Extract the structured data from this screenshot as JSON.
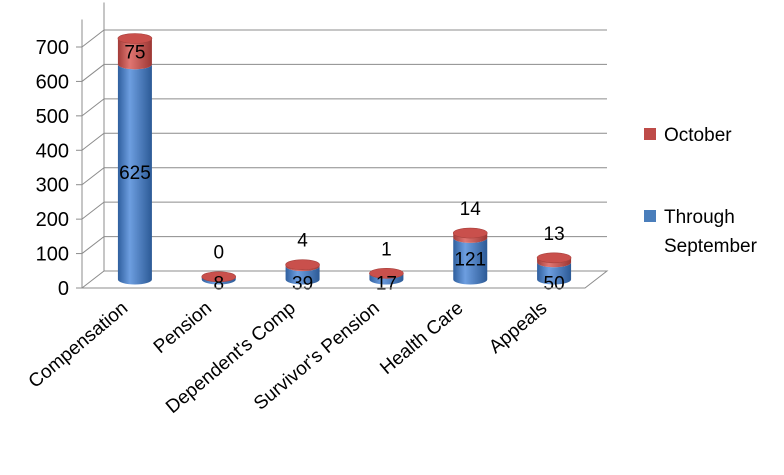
{
  "chart_data": {
    "type": "bar",
    "stacked": true,
    "style": "3d-cylinder",
    "categories": [
      "Compensation",
      "Pension",
      "Dependent's Comp",
      "Survivor's Pension",
      "Health Care",
      "Appeals"
    ],
    "series": [
      {
        "name": "Through September",
        "values": [
          625,
          8,
          39,
          17,
          121,
          50
        ],
        "color": "#4a7ebb"
      },
      {
        "name": "October",
        "values": [
          75,
          0,
          4,
          1,
          14,
          13
        ],
        "color": "#be4b48"
      }
    ],
    "yticks": [
      0,
      100,
      200,
      300,
      400,
      500,
      600,
      700
    ],
    "ylim": [
      0,
      780
    ],
    "grid": true,
    "legend_position": "right",
    "legend": {
      "october": "October",
      "through_line1": "Through",
      "through_line2": "September"
    }
  }
}
